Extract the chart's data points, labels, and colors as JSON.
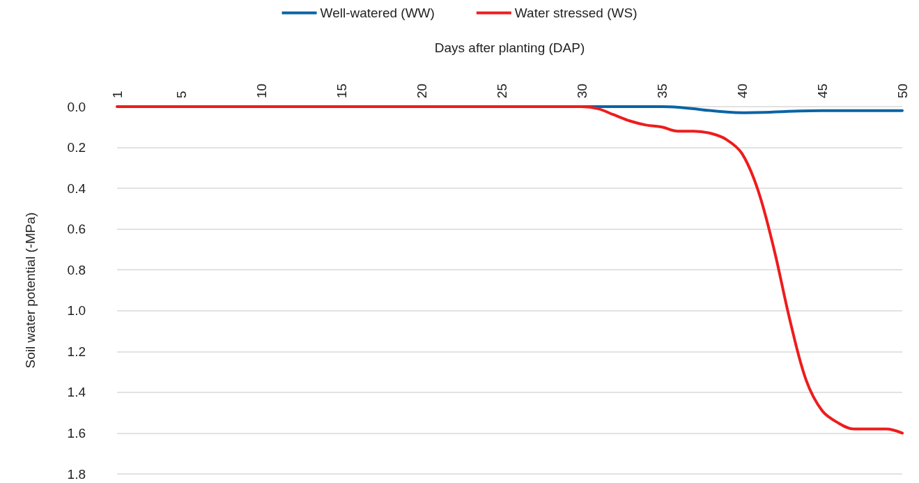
{
  "chart_data": {
    "type": "line",
    "xlabel": "Days after planting (DAP)",
    "ylabel": "Soil water potential (-MPa)",
    "series": [
      {
        "name": "Well-watered (WW)",
        "color": "#0a64a4",
        "x": [
          30,
          35,
          40,
          45,
          50
        ],
        "values": [
          0,
          0,
          0.03,
          0.02,
          0.02
        ]
      },
      {
        "name": "Water stressed (WS)",
        "color": "#ee1c1c",
        "x": [
          1,
          5,
          10,
          15,
          20,
          25,
          30,
          31,
          32,
          33,
          34,
          35,
          36,
          37,
          38,
          39,
          40,
          41,
          42,
          43,
          44,
          45,
          46,
          47,
          48,
          49,
          50
        ],
        "values": [
          0,
          0,
          0,
          0,
          0,
          0,
          0,
          0.01,
          0.04,
          0.07,
          0.09,
          0.1,
          0.12,
          0.12,
          0.13,
          0.16,
          0.23,
          0.41,
          0.7,
          1.05,
          1.34,
          1.49,
          1.55,
          1.58,
          1.58,
          1.58,
          1.6
        ]
      }
    ],
    "xlim": [
      1,
      50
    ],
    "xticks": [
      1,
      5,
      10,
      15,
      20,
      25,
      30,
      35,
      40,
      45,
      50
    ],
    "ylim": [
      1.8,
      0
    ],
    "yticks": [
      {
        "value": 0,
        "label": "0.0"
      },
      {
        "value": 0.2,
        "label": "0.2"
      },
      {
        "value": 0.4,
        "label": "0.4"
      },
      {
        "value": 0.6,
        "label": "0.6"
      },
      {
        "value": 0.8,
        "label": "0.8"
      },
      {
        "value": 1,
        "label": "1.0"
      },
      {
        "value": 1.2,
        "label": "1.2"
      },
      {
        "value": 1.4,
        "label": "1.4"
      },
      {
        "value": 1.6,
        "label": "1.6"
      },
      {
        "value": 1.8,
        "label": "1.8"
      }
    ],
    "grid": "y",
    "legend": "top",
    "marker": "none",
    "line_style": "solid"
  }
}
